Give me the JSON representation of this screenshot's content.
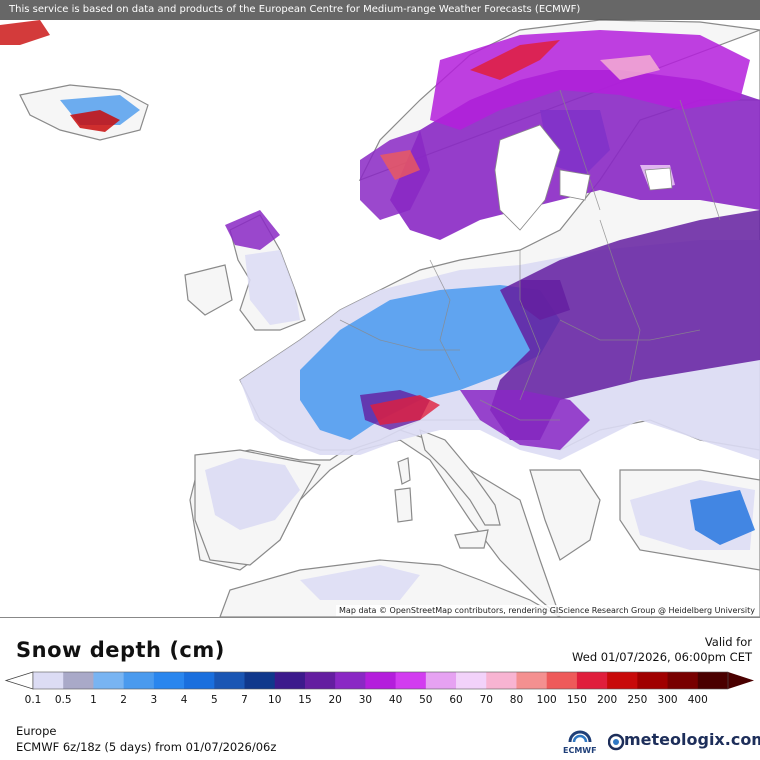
{
  "banner": "This service is based on data and products of the European Centre for Medium-range Weather Forecasts (ECMWF)",
  "attribution": "Map data © OpenStreetMap contributors, rendering GIScience Research Group @ Heidelberg University",
  "title": "Snow depth (cm)",
  "valid_label": "Valid for",
  "valid_time": "Wed 01/07/2026, 06:00pm CET",
  "legend": {
    "ticks": [
      "0.1",
      "0.5",
      "1",
      "2",
      "3",
      "4",
      "5",
      "7",
      "10",
      "15",
      "20",
      "30",
      "40",
      "50",
      "60",
      "70",
      "80",
      "100",
      "150",
      "200",
      "250",
      "300",
      "400"
    ],
    "colors": [
      "#dcdcf4",
      "#a9a9c8",
      "#78b4f2",
      "#4a9aee",
      "#2a86ee",
      "#1a6fde",
      "#1a56b4",
      "#10388c",
      "#3c1a8c",
      "#641ea0",
      "#8a28c4",
      "#b41edc",
      "#d23cf0",
      "#e6a2f2",
      "#f2d2fa",
      "#f8b4d2",
      "#f49090",
      "#ee5a5a",
      "#e01e3c",
      "#c80a0a",
      "#a00000",
      "#780000",
      "#4a0000"
    ]
  },
  "region": "Europe",
  "run_info": "ECMWF 6z/18z (5 days) from  01/07/2026/06z",
  "logos": {
    "ecmwf": "ECMWF",
    "meteologix": "meteologix.com"
  },
  "icons": {
    "ecmwf": "ecmwf-logo-icon",
    "meteologix": "meteologix-logo-icon"
  }
}
